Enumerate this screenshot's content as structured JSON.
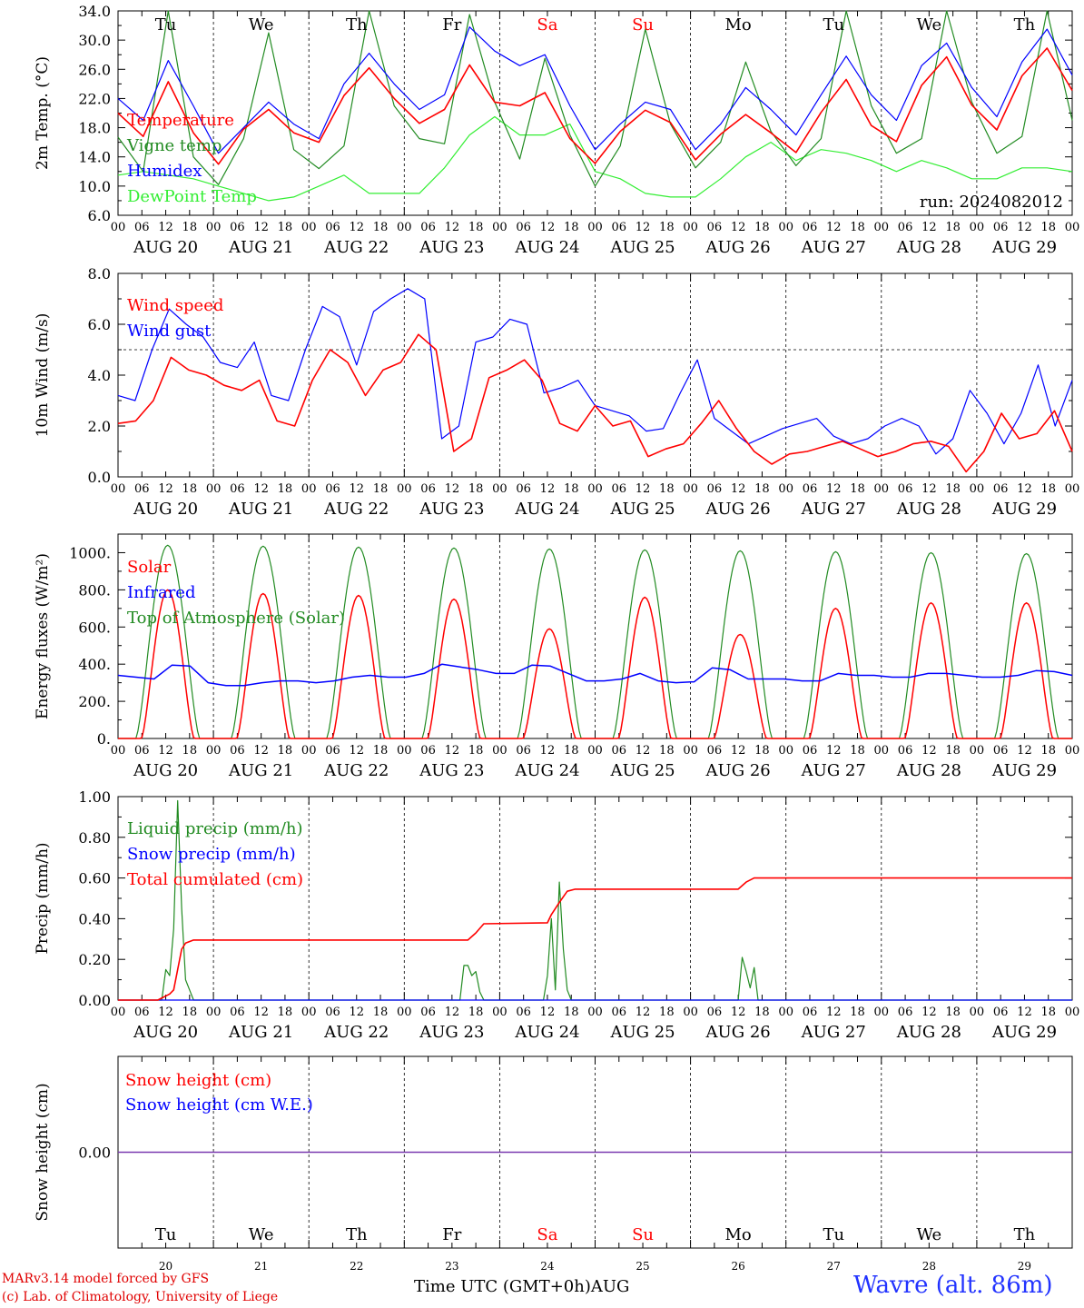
{
  "chart_data": [
    {
      "type": "line",
      "ylabel": "2m Temp. (°C)",
      "ylim": [
        6.0,
        34.0
      ],
      "yticks": [
        "6.0",
        "10.0",
        "14.0",
        "18.0",
        "22.0",
        "26.0",
        "30.0",
        "34.0"
      ],
      "run_label": "run: 2024082012",
      "day_names": [
        "Tu",
        "We",
        "Th",
        "Fr",
        "Sa",
        "Su",
        "Mo",
        "Tu",
        "We",
        "Th"
      ],
      "x_hours": [
        0,
        6,
        12,
        18,
        24,
        30,
        36,
        42,
        48,
        54,
        60,
        66,
        72,
        78,
        84,
        90,
        96,
        102,
        108,
        114,
        120,
        126,
        132,
        138,
        144,
        150,
        156,
        162,
        168,
        174,
        180,
        186,
        192,
        198,
        204,
        210,
        216,
        222,
        228,
        234,
        240
      ],
      "series": [
        {
          "name": "Temperature",
          "color": "#ff0000",
          "values": [
            20.0,
            16.8,
            24.3,
            17.3,
            13.0,
            17.8,
            20.5,
            17.3,
            16.0,
            22.4,
            26.2,
            22.0,
            18.6,
            20.5,
            26.6,
            21.5,
            21.0,
            22.8,
            16.5,
            13.1,
            17.5,
            20.4,
            18.7,
            13.6,
            17.1,
            19.8,
            17.3,
            14.6,
            20.1,
            24.6,
            18.3,
            16.1,
            23.8,
            27.7,
            21.1,
            17.7,
            25.1,
            28.9,
            23.1
          ]
        },
        {
          "name": "Vigne temp",
          "color": "#228b22",
          "values": [
            16.7,
            12.0,
            34.0,
            14.0,
            10.2,
            16.5,
            31.0,
            15.0,
            12.4,
            15.5,
            34.0,
            21.0,
            16.5,
            15.8,
            33.5,
            21.5,
            13.7,
            27.5,
            17.0,
            10.0,
            15.5,
            31.5,
            18.5,
            12.5,
            16.0,
            27.0,
            17.5,
            12.8,
            16.5,
            34.0,
            21.0,
            14.5,
            16.5,
            34.0,
            21.5,
            14.5,
            16.8,
            34.0,
            19.0
          ]
        },
        {
          "name": "Humidex",
          "color": "#0000ff",
          "values": [
            22.0,
            19.0,
            27.2,
            21.0,
            14.5,
            18.0,
            21.5,
            18.5,
            16.5,
            24.0,
            28.2,
            24.0,
            20.5,
            22.5,
            31.8,
            28.5,
            26.5,
            28.0,
            21.0,
            15.0,
            18.5,
            21.5,
            20.5,
            15.0,
            18.5,
            23.5,
            20.5,
            17.0,
            22.5,
            27.8,
            22.5,
            19.0,
            26.5,
            29.6,
            23.5,
            19.5,
            27.0,
            31.5,
            25.2
          ]
        },
        {
          "name": "DewPoint Temp",
          "color": "#33ee33",
          "values": [
            11.5,
            12.0,
            11.5,
            11.0,
            10.0,
            9.0,
            8.0,
            8.5,
            10.0,
            11.5,
            9.0,
            9.0,
            9.0,
            12.5,
            17.0,
            19.5,
            17.0,
            17.0,
            18.5,
            12.0,
            11.0,
            9.0,
            8.5,
            8.5,
            11.0,
            14.0,
            16.0,
            13.5,
            15.0,
            14.5,
            13.5,
            12.0,
            13.5,
            12.5,
            11.0,
            11.0,
            12.5,
            12.5,
            12.0
          ]
        }
      ]
    },
    {
      "type": "line",
      "ylabel": "10m Wind (m/s)",
      "ylim": [
        0.0,
        8.0
      ],
      "yticks": [
        "0.0",
        "2.0",
        "4.0",
        "6.0",
        "8.0"
      ],
      "reference_line": 5.0,
      "series": [
        {
          "name": "Wind speed",
          "color": "#ff0000",
          "values": [
            2.1,
            2.2,
            3.0,
            4.7,
            4.2,
            4.0,
            3.6,
            3.4,
            3.8,
            2.2,
            2.0,
            3.8,
            5.0,
            4.5,
            3.2,
            4.2,
            4.5,
            5.6,
            5.0,
            1.0,
            1.5,
            3.9,
            4.2,
            4.6,
            3.8,
            2.1,
            1.8,
            2.8,
            2.0,
            2.2,
            0.8,
            1.1,
            1.3,
            2.1,
            3.0,
            1.9,
            1.0,
            0.5,
            0.9,
            1.0,
            1.2,
            1.4,
            1.1,
            0.8,
            1.0,
            1.3,
            1.4,
            1.2,
            0.2,
            1.0,
            2.5,
            1.5,
            1.7,
            2.6,
            1.0
          ]
        },
        {
          "name": "Wind gust",
          "color": "#0000ff",
          "values": [
            3.2,
            3.0,
            5.0,
            6.6,
            6.0,
            5.5,
            4.5,
            4.3,
            5.3,
            3.2,
            3.0,
            5.0,
            6.7,
            6.3,
            4.4,
            6.5,
            7.0,
            7.4,
            7.0,
            1.5,
            2.0,
            5.3,
            5.5,
            6.2,
            6.0,
            3.3,
            3.5,
            3.8,
            2.8,
            2.6,
            2.4,
            1.8,
            1.9,
            3.3,
            4.6,
            2.3,
            1.8,
            1.3,
            1.6,
            1.9,
            2.1,
            2.3,
            1.6,
            1.3,
            1.5,
            2.0,
            2.3,
            2.0,
            0.9,
            1.5,
            3.4,
            2.5,
            1.3,
            2.5,
            4.4,
            2.0,
            3.8
          ]
        }
      ]
    },
    {
      "type": "line",
      "ylabel": "Energy fluxes (W/m²)",
      "ylim": [
        0,
        1100
      ],
      "yticks": [
        "0.",
        "200.",
        "400.",
        "600.",
        "800.",
        "1000."
      ],
      "series": [
        {
          "name": "Solar",
          "color": "#ff0000",
          "day_peaks": [
            800,
            780,
            770,
            750,
            590,
            760,
            560,
            700,
            730,
            730
          ]
        },
        {
          "name": "Infrared",
          "color": "#0000ff",
          "values": [
            340,
            330,
            320,
            395,
            390,
            300,
            285,
            285,
            300,
            310,
            310,
            300,
            310,
            330,
            340,
            330,
            330,
            350,
            400,
            385,
            370,
            350,
            350,
            395,
            390,
            350,
            310,
            310,
            320,
            350,
            310,
            300,
            305,
            380,
            370,
            320,
            320,
            320,
            310,
            310,
            350,
            340,
            340,
            330,
            330,
            350,
            350,
            340,
            330,
            330,
            340,
            365,
            360,
            340
          ]
        },
        {
          "name": "Top of Atmosphere (Solar)",
          "color": "#228b22",
          "day_peaks": [
            1040,
            1035,
            1030,
            1025,
            1020,
            1015,
            1010,
            1005,
            1000,
            995
          ]
        }
      ]
    },
    {
      "type": "line",
      "ylabel": "Precip (mm/h)",
      "ylim": [
        0.0,
        1.0
      ],
      "yticks": [
        "0.00",
        "0.20",
        "0.40",
        "0.60",
        "0.80",
        "1.00"
      ],
      "series": [
        {
          "name": "Liquid precip (mm/h)",
          "color": "#228b22",
          "points": [
            [
              0,
              0
            ],
            [
              11,
              0
            ],
            [
              12,
              0.15
            ],
            [
              13,
              0.12
            ],
            [
              14,
              0.35
            ],
            [
              15,
              0.98
            ],
            [
              16,
              0.45
            ],
            [
              17,
              0.1
            ],
            [
              18,
              0.05
            ],
            [
              19,
              0
            ],
            [
              86,
              0
            ],
            [
              87,
              0.17
            ],
            [
              88,
              0.17
            ],
            [
              89,
              0.12
            ],
            [
              90,
              0.14
            ],
            [
              91,
              0.04
            ],
            [
              92,
              0
            ],
            [
              107,
              0
            ],
            [
              108,
              0.12
            ],
            [
              109,
              0.4
            ],
            [
              110,
              0.05
            ],
            [
              111,
              0.58
            ],
            [
              112,
              0.25
            ],
            [
              113,
              0.05
            ],
            [
              114,
              0
            ],
            [
              156,
              0
            ],
            [
              157,
              0.21
            ],
            [
              158,
              0.14
            ],
            [
              159,
              0.06
            ],
            [
              160,
              0.16
            ],
            [
              161,
              0
            ],
            [
              240,
              0
            ]
          ]
        },
        {
          "name": "Snow precip (mm/h)",
          "color": "#0000ff",
          "points": [
            [
              0,
              0
            ],
            [
              240,
              0
            ]
          ]
        },
        {
          "name": "Total cumulated (cm)",
          "color": "#ff0000",
          "points": [
            [
              0,
              0
            ],
            [
              10,
              0
            ],
            [
              13,
              0.03
            ],
            [
              14,
              0.05
            ],
            [
              15,
              0.15
            ],
            [
              16,
              0.25
            ],
            [
              17,
              0.28
            ],
            [
              19,
              0.295
            ],
            [
              88,
              0.295
            ],
            [
              90,
              0.33
            ],
            [
              92,
              0.375
            ],
            [
              108,
              0.38
            ],
            [
              109,
              0.42
            ],
            [
              111,
              0.48
            ],
            [
              113,
              0.535
            ],
            [
              115,
              0.545
            ],
            [
              156,
              0.545
            ],
            [
              158,
              0.58
            ],
            [
              160,
              0.6
            ],
            [
              240,
              0.6
            ]
          ]
        }
      ]
    },
    {
      "type": "line",
      "ylabel": "Snow height (cm)",
      "yticks": [
        "0.00"
      ],
      "series": [
        {
          "name": "Snow height (cm)",
          "color": "#ff0000",
          "values": [
            0,
            0
          ]
        },
        {
          "name": "Snow height (cm W.E.)",
          "color": "#0000ff",
          "values": [
            0,
            0
          ]
        }
      ]
    }
  ],
  "x_labels": {
    "hour_ticks": [
      "00",
      "06",
      "12",
      "18"
    ],
    "day_labels": [
      "AUG 20",
      "AUG 21",
      "AUG 22",
      "AUG 23",
      "AUG 24",
      "AUG 25",
      "AUG 26",
      "AUG 27",
      "AUG 28",
      "AUG 29"
    ],
    "day_numbers": [
      "20",
      "21",
      "22",
      "23",
      "24",
      "25",
      "26",
      "27",
      "28",
      "29"
    ],
    "weekend_color": "#ff0000"
  },
  "footer": {
    "credit1": "MARv3.14 model forced by GFS",
    "credit2": "(c) Lab. of Climatology, University of Liege",
    "xaxis_title": "Time UTC (GMT+0h)AUG",
    "station": "Wavre (alt. 86m)"
  }
}
